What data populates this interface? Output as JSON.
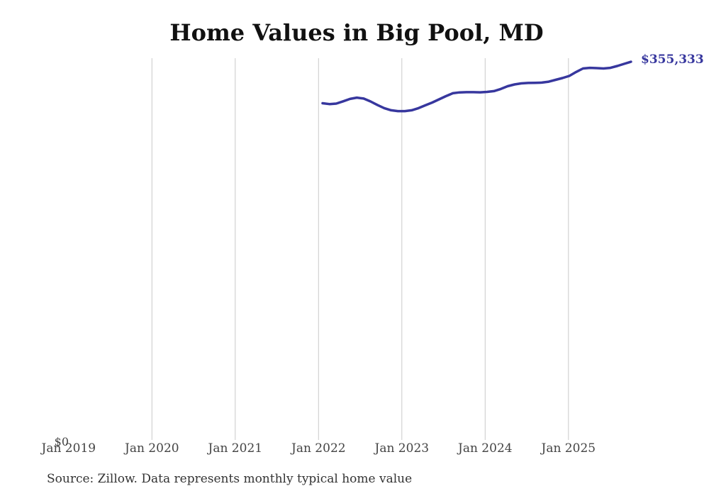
{
  "chart": {
    "title": "Home Values in Big Pool, MD",
    "y_zero_label": "$0",
    "end_value_label": "$355,333",
    "source_note": "Source: Zillow. Data represents monthly typical home value"
  },
  "colors": {
    "line": "#37379e",
    "grid": "#c9c9c9",
    "tick_text": "#444444",
    "title_text": "#111111",
    "source_text": "#333333",
    "end_label_text": "#37379e",
    "background": "#ffffff"
  },
  "chart_data": {
    "type": "line",
    "title": "Home Values in Big Pool, MD",
    "xlabel": "",
    "ylabel": "",
    "grid": "vertical",
    "legend": "none",
    "ylim": [
      0,
      358600
    ],
    "x_tick_labels": [
      "Jan 2019",
      "Jan 2020",
      "Jan 2021",
      "Jan 2022",
      "Jan 2023",
      "Jan 2024",
      "Jan 2025"
    ],
    "y_tick_labels": [
      "$0"
    ],
    "series": [
      {
        "name": "Monthly typical home value",
        "color": "#37379e",
        "months": [
          "2022-01",
          "2022-02",
          "2022-03",
          "2022-04",
          "2022-05",
          "2022-06",
          "2022-07",
          "2022-08",
          "2022-09",
          "2022-10",
          "2022-11",
          "2022-12",
          "2023-01",
          "2023-02",
          "2023-03",
          "2023-04",
          "2023-05",
          "2023-06",
          "2023-07",
          "2023-08",
          "2023-09",
          "2023-10",
          "2023-11",
          "2023-12",
          "2024-01",
          "2024-02",
          "2024-03",
          "2024-04",
          "2024-05",
          "2024-06",
          "2024-07",
          "2024-08",
          "2024-09",
          "2024-10",
          "2024-11",
          "2024-12",
          "2025-01",
          "2025-02",
          "2025-03",
          "2025-04",
          "2025-05",
          "2025-06",
          "2025-07",
          "2025-08",
          "2025-09",
          "2025-10"
        ],
        "values": [
          316300,
          315500,
          316000,
          318100,
          320400,
          321600,
          320700,
          318000,
          314700,
          311700,
          309700,
          308900,
          308900,
          309700,
          311700,
          314400,
          317000,
          320000,
          323000,
          325700,
          326500,
          326700,
          326700,
          326600,
          327000,
          327700,
          329700,
          332300,
          334000,
          335000,
          335400,
          335500,
          335700,
          336600,
          338300,
          340000,
          342000,
          345700,
          349000,
          349600,
          349300,
          349000,
          349600,
          351300,
          353300,
          355333
        ]
      }
    ],
    "end_annotation": {
      "text": "$355,333",
      "value": 355333,
      "month": "2025-10"
    }
  }
}
